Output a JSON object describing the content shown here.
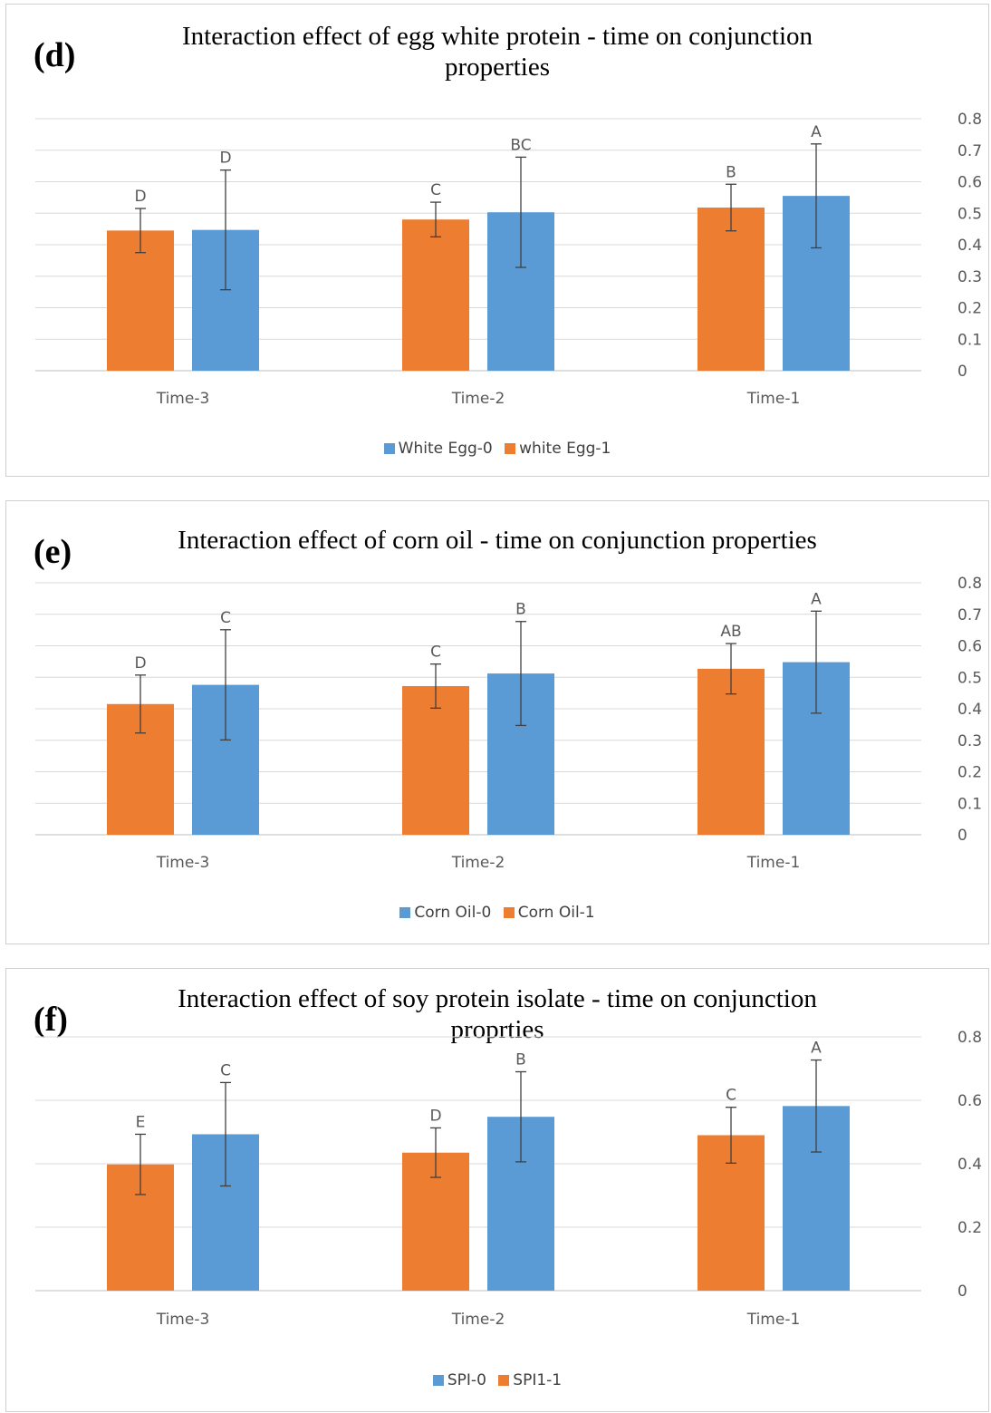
{
  "colors": {
    "blue": "#5b9bd5",
    "orange": "#ed7d31",
    "grid": "#d9d9d9",
    "axis": "#bfbfbf",
    "text": "#595959"
  },
  "chart_data": [
    {
      "type": "bar",
      "panel_label": "(d)",
      "title_lines": [
        "Interaction effect of egg white protein - time on conjunction",
        "properties"
      ],
      "categories": [
        "Time-3",
        "Time-2",
        "Time-1"
      ],
      "ylim": [
        0,
        0.8
      ],
      "yticks": [
        "0",
        "0.1",
        "0.2",
        "0.3",
        "0.4",
        "0.5",
        "0.6",
        "0.7",
        "0.8"
      ],
      "yaxis_side": "right",
      "grid": true,
      "legend_position": "bottom",
      "legend": [
        "White Egg-0",
        "white Egg-1"
      ],
      "series": [
        {
          "name": "white Egg-1",
          "color": "#ed7d31",
          "values": [
            0.445,
            0.48,
            0.518
          ],
          "errors": [
            0.07,
            0.055,
            0.074
          ],
          "labels": [
            "D",
            "C",
            "B"
          ]
        },
        {
          "name": "White Egg-0",
          "color": "#5b9bd5",
          "values": [
            0.447,
            0.503,
            0.555
          ],
          "errors": [
            0.19,
            0.175,
            0.165
          ],
          "labels": [
            "D",
            "BC",
            "A"
          ]
        }
      ]
    },
    {
      "type": "bar",
      "panel_label": "(e)",
      "title_lines": [
        "Interaction effect of corn oil - time on conjunction properties"
      ],
      "categories": [
        "Time-3",
        "Time-2",
        "Time-1"
      ],
      "ylim": [
        0,
        0.8
      ],
      "yticks": [
        "0",
        "0.1",
        "0.2",
        "0.3",
        "0.4",
        "0.5",
        "0.6",
        "0.7",
        "0.8"
      ],
      "yaxis_side": "right",
      "grid": true,
      "legend_position": "bottom",
      "legend": [
        "Corn Oil-0",
        "Corn Oil-1"
      ],
      "series": [
        {
          "name": "Corn Oil-1",
          "color": "#ed7d31",
          "values": [
            0.415,
            0.472,
            0.527
          ],
          "errors": [
            0.092,
            0.07,
            0.08
          ],
          "labels": [
            "D",
            "C",
            "AB"
          ]
        },
        {
          "name": "Corn Oil-0",
          "color": "#5b9bd5",
          "values": [
            0.476,
            0.512,
            0.548
          ],
          "errors": [
            0.175,
            0.165,
            0.162
          ],
          "labels": [
            "C",
            "B",
            "A"
          ]
        }
      ]
    },
    {
      "type": "bar",
      "panel_label": "(f)",
      "title_lines": [
        "Interaction effect of soy protein isolate - time on conjunction",
        "proprties"
      ],
      "categories": [
        "Time-3",
        "Time-2",
        "Time-1"
      ],
      "ylim": [
        0,
        0.8
      ],
      "yticks": [
        "0",
        "0.2",
        "0.4",
        "0.6",
        "0.8"
      ],
      "yaxis_side": "right",
      "grid": true,
      "legend_position": "bottom",
      "legend": [
        "SPI-0",
        "SPI1-1"
      ],
      "series": [
        {
          "name": "SPI1-1",
          "color": "#ed7d31",
          "values": [
            0.398,
            0.435,
            0.49
          ],
          "errors": [
            0.095,
            0.078,
            0.088
          ],
          "labels": [
            "E",
            "D",
            "C"
          ]
        },
        {
          "name": "SPI-0",
          "color": "#5b9bd5",
          "values": [
            0.493,
            0.548,
            0.582
          ],
          "errors": [
            0.163,
            0.142,
            0.145
          ],
          "labels": [
            "C",
            "B",
            "A"
          ]
        }
      ]
    }
  ]
}
